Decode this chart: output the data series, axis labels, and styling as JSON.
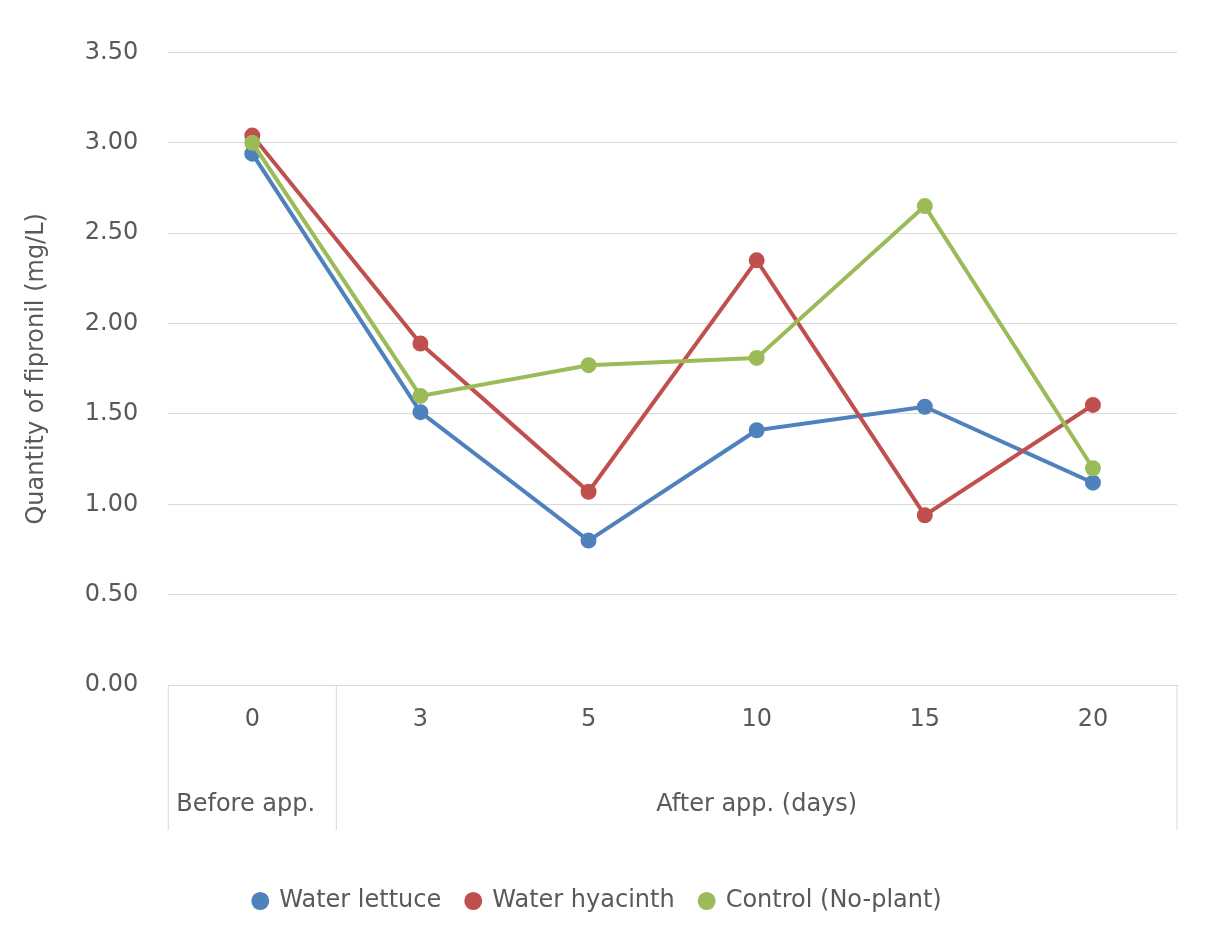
{
  "chart_data": {
    "type": "line",
    "ylabel": "Quantity of fipronil (mg/L)",
    "categories": [
      "0",
      "3",
      "5",
      "10",
      "15",
      "20"
    ],
    "series": [
      {
        "name": "Water lettuce",
        "color": "#4f81bd",
        "values": [
          2.94,
          1.51,
          0.8,
          1.41,
          1.54,
          1.12
        ]
      },
      {
        "name": "Water hyacinth",
        "color": "#c0504d",
        "values": [
          3.04,
          1.89,
          1.07,
          2.35,
          0.94,
          1.55
        ]
      },
      {
        "name": "Control (No-plant)",
        "color": "#9bbb59",
        "values": [
          3.0,
          1.6,
          1.77,
          1.81,
          2.65,
          1.2
        ]
      }
    ],
    "ylim": [
      0,
      3.5
    ],
    "yticks": [
      {
        "value": 0,
        "label": "0.00"
      },
      {
        "value": 0.5,
        "label": "0.50"
      },
      {
        "value": 1,
        "label": "1.00"
      },
      {
        "value": 1.5,
        "label": "1.50"
      },
      {
        "value": 2,
        "label": "2.00"
      },
      {
        "value": 2.5,
        "label": "2.50"
      },
      {
        "value": 3,
        "label": "3.00"
      },
      {
        "value": 3.5,
        "label": "3.50"
      }
    ],
    "grid": "y",
    "legend": "bottom",
    "marker": "circle",
    "line_style": "solid",
    "annotations": [
      "Before app.",
      "After app. (days)"
    ]
  }
}
